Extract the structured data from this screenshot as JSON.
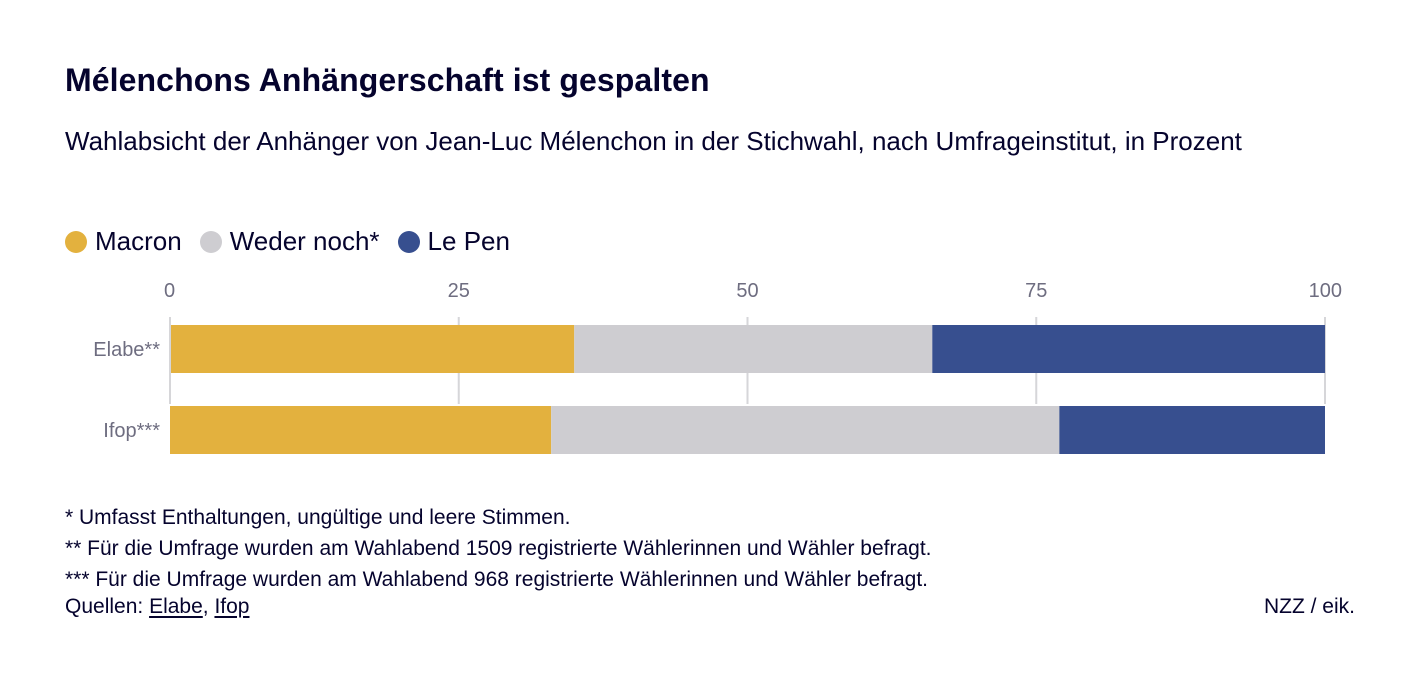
{
  "header": {
    "title": "Mélenchons Anhängerschaft ist gespalten",
    "subtitle": "Wahlabsicht der Anhänger von Jean-Luc Mélenchon in der Stichwahl, nach Umfrageinstitut, in Prozent"
  },
  "legend": [
    {
      "label": "Macron",
      "color": "#e3b13e"
    },
    {
      "label": "Weder noch*",
      "color": "#cecdd1"
    },
    {
      "label": "Le Pen",
      "color": "#374f8f"
    }
  ],
  "chart_data": {
    "type": "bar",
    "orientation": "horizontal",
    "stacked": true,
    "title": "Mélenchons Anhängerschaft ist gespalten",
    "categories": [
      "Elabe**",
      "Ifop***"
    ],
    "series": [
      {
        "name": "Macron",
        "values": [
          35,
          33
        ],
        "color": "#e3b13e"
      },
      {
        "name": "Weder noch*",
        "values": [
          31,
          44
        ],
        "color": "#cecdd1"
      },
      {
        "name": "Le Pen",
        "values": [
          34,
          23
        ],
        "color": "#374f8f"
      }
    ],
    "xlim": [
      0,
      100
    ],
    "xticks": [
      "0",
      "25",
      "50",
      "75",
      "100"
    ],
    "xtick_values": [
      0,
      25,
      50,
      75,
      100
    ],
    "grid": true
  },
  "footnotes": [
    "* Umfasst Enthaltungen, ungültige und leere Stimmen.",
    "** Für die Umfrage wurden am Wahlabend 1509 registrierte Wählerinnen und Wähler befragt.",
    "*** Für die Umfrage wurden am Wahlabend 968 registrierte Wählerinnen und Wähler befragt."
  ],
  "sources": {
    "prefix": "Quellen: ",
    "separator": ", ",
    "links": [
      "Elabe",
      "Ifop"
    ]
  },
  "credit": "NZZ / eik."
}
